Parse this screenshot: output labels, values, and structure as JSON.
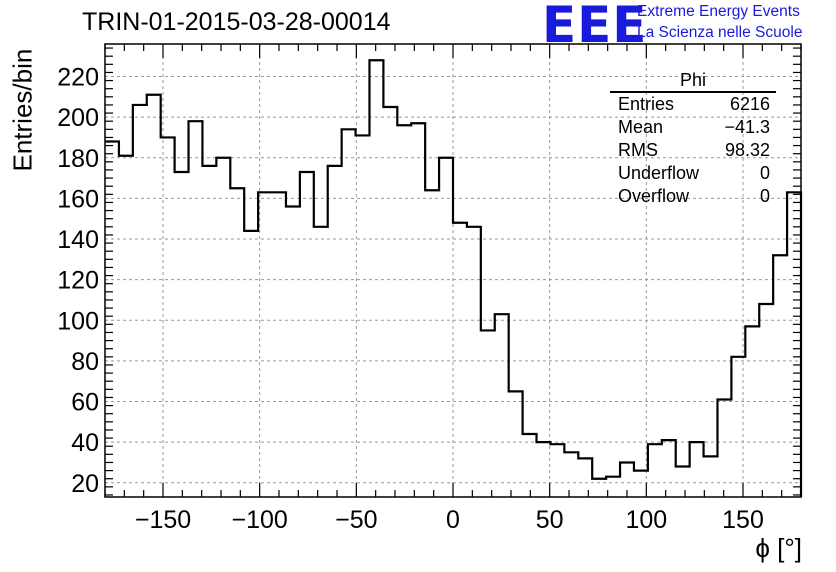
{
  "header": {
    "run_title": "TRIN-01-2015-03-28-00014",
    "logo_text": "EEE",
    "logo_line1": "Extreme Energy Events",
    "logo_line2": "La Scienza nelle Scuole"
  },
  "stats": {
    "name": "Phi",
    "rows": [
      {
        "label": "Entries",
        "value": "6216"
      },
      {
        "label": "Mean",
        "value": "−41.3"
      },
      {
        "label": "RMS",
        "value": "98.32"
      },
      {
        "label": "Underflow",
        "value": "0"
      },
      {
        "label": "Overflow",
        "value": "0"
      }
    ]
  },
  "colors": {
    "line": "#000000",
    "grid": "#999999",
    "logo": "#1a1adb"
  },
  "chart_data": {
    "type": "histogram",
    "title": "TRIN-01-2015-03-28-00014",
    "xlabel": "ϕ [°]",
    "ylabel": "Entries/bin",
    "xlim": [
      -180,
      180
    ],
    "ylim": [
      13,
      236
    ],
    "bin_width": 7.2,
    "bin_edges_start": -180,
    "xticks": [
      -150,
      -100,
      -50,
      0,
      50,
      100,
      150
    ],
    "xtick_labels": [
      "−150",
      "−100",
      "−50",
      "0",
      "50",
      "100",
      "150"
    ],
    "yticks": [
      20,
      40,
      60,
      80,
      100,
      120,
      140,
      160,
      180,
      200,
      220
    ],
    "ytick_labels": [
      "20",
      "40",
      "60",
      "80",
      "100",
      "120",
      "140",
      "160",
      "180",
      "200",
      "220"
    ],
    "grid": true,
    "values": [
      188,
      181,
      206,
      211,
      190,
      173,
      198,
      176,
      180,
      165,
      144,
      163,
      163,
      156,
      173,
      146,
      176,
      194,
      191,
      228,
      205,
      196,
      197,
      164,
      180,
      148,
      146,
      95,
      103,
      65,
      44,
      40,
      39,
      35,
      32,
      22,
      23,
      30,
      26,
      39,
      41,
      28,
      40,
      33,
      61,
      82,
      97,
      108,
      132,
      163
    ]
  }
}
